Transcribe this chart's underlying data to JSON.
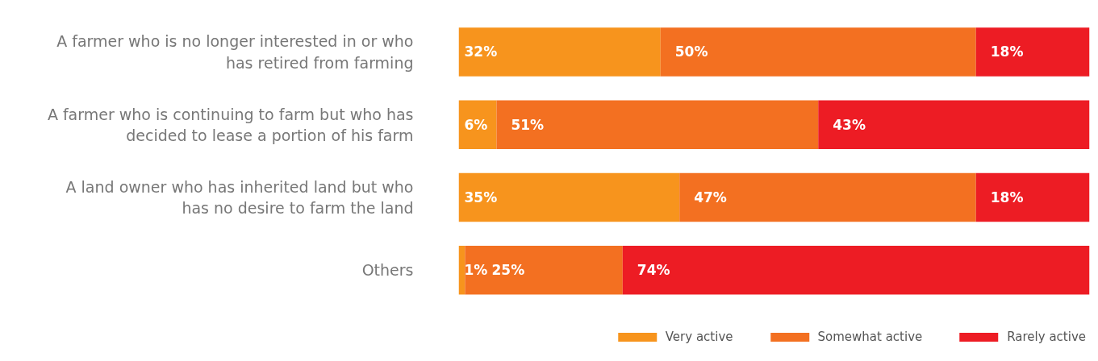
{
  "chart_data": {
    "type": "bar",
    "orientation": "horizontal",
    "stacked": true,
    "categories": [
      "A farmer who is no longer interested in or who has retired from farming",
      "A farmer who is continuing to farm but who has decided to lease a portion of his farm",
      "A land owner who has inherited land but who has no desire to farm the land",
      "Others"
    ],
    "series": [
      {
        "name": "Very active",
        "color": "#f7941d",
        "values": [
          32,
          6,
          35,
          1
        ],
        "value_labels": [
          "32%",
          "6%",
          "35%",
          "1%"
        ]
      },
      {
        "name": "Somewhat active",
        "color": "#f37021",
        "values": [
          50,
          51,
          47,
          25
        ],
        "value_labels": [
          "50%",
          "51%",
          "47%",
          "25%"
        ]
      },
      {
        "name": "Rarely active",
        "color": "#ed1c24",
        "values": [
          18,
          43,
          18,
          74
        ],
        "value_labels": [
          "18%",
          "43%",
          "18%",
          "74%"
        ]
      }
    ],
    "tick_labels": "y",
    "legend": "bottom"
  }
}
